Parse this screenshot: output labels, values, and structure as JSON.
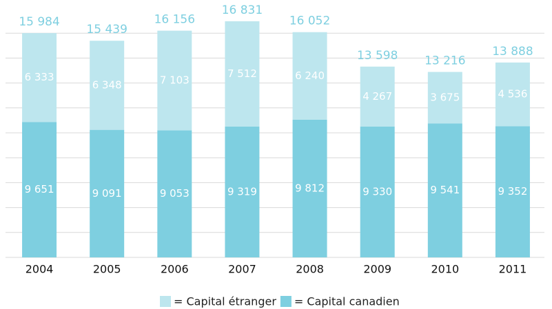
{
  "chart_data": {
    "type": "stacked_bar",
    "categories": [
      "2004",
      "2005",
      "2006",
      "2007",
      "2008",
      "2009",
      "2010",
      "2011"
    ],
    "series": [
      {
        "name": "= Capital canadien",
        "color": "#7ecfe0",
        "values": [
          9651,
          9091,
          9053,
          9319,
          9812,
          9330,
          9541,
          9352
        ],
        "value_labels": [
          "9 651",
          "9 091",
          "9 053",
          "9 319",
          "9 812",
          "9 330",
          "9 541",
          "9 352"
        ]
      },
      {
        "name": "= Capital étranger",
        "color": "#bde6ee",
        "values": [
          6333,
          6348,
          7103,
          7512,
          6240,
          4267,
          3675,
          4536
        ],
        "value_labels": [
          "6 333",
          "6 348",
          "7 103",
          "7 512",
          "6 240",
          "4 267",
          "3 675",
          "4 536"
        ]
      }
    ],
    "total_labels": [
      "15 984",
      "15 439",
      "16 156",
      "16 831",
      "16 052",
      "13 598",
      "13 216",
      "13 888"
    ],
    "ylim": [
      0,
      18000
    ],
    "grid": true
  }
}
